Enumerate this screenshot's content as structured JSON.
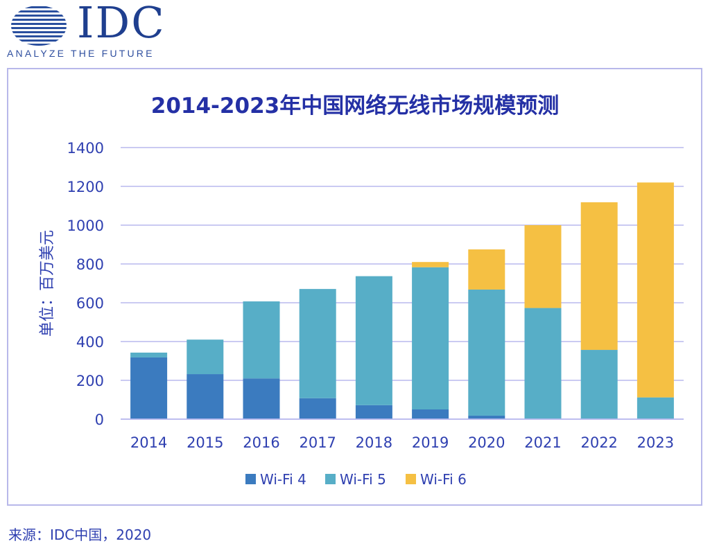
{
  "logo": {
    "text": "IDC",
    "tagline": "ANALYZE THE FUTURE",
    "icon": "globe-logo-icon"
  },
  "source": "来源：IDC中国，2020",
  "colors": {
    "wifi4": "#3b7bbf",
    "wifi5": "#57aec7",
    "wifi6": "#f5c043",
    "title": "#2430a5",
    "axis_text": "#2e3fb0",
    "grid": "#b9b9ee",
    "frame": "#b8b8ea"
  },
  "chart_data": {
    "type": "bar",
    "stacked": true,
    "title": "2014-2023年中国网络无线市场规模预测",
    "ylabel": "单位：百万美元",
    "xlabel": "",
    "ylim": [
      0,
      1400
    ],
    "yticks": [
      "0",
      "200",
      "400",
      "600",
      "800",
      "1000",
      "1200",
      "1400"
    ],
    "grid": true,
    "legend_position": "bottom",
    "categories": [
      "2014",
      "2015",
      "2016",
      "2017",
      "2018",
      "2019",
      "2020",
      "2021",
      "2022",
      "2023"
    ],
    "series": [
      {
        "name": "Wi-Fi 4",
        "values": [
          318,
          232,
          210,
          108,
          72,
          50,
          18,
          0,
          0,
          0
        ]
      },
      {
        "name": "Wi-Fi 5",
        "values": [
          25,
          178,
          397,
          563,
          665,
          733,
          650,
          573,
          357,
          112
        ]
      },
      {
        "name": "Wi-Fi 6",
        "values": [
          0,
          0,
          0,
          0,
          0,
          27,
          207,
          427,
          761,
          1108
        ]
      }
    ]
  }
}
